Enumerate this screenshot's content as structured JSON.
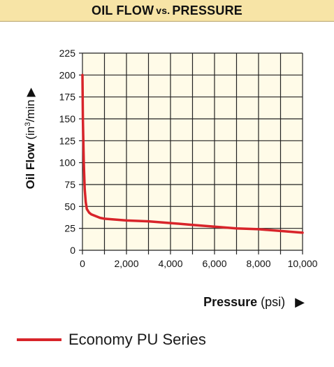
{
  "chart_data": {
    "type": "line",
    "title": {
      "part1": "OIL FLOW",
      "vs": "vs.",
      "part2": "PRESSURE"
    },
    "ylabel": {
      "main": "Oil Flow",
      "unit_open": " (in",
      "unit_sup": "3",
      "unit_close": "/min",
      "arrow": "▶"
    },
    "xlabel": {
      "main": "Pressure",
      "unit": " (psi)",
      "arrow": "▶"
    },
    "xlim": [
      0,
      10000
    ],
    "ylim": [
      0,
      225
    ],
    "x_ticks": [
      0,
      1000,
      2000,
      3000,
      4000,
      5000,
      6000,
      7000,
      8000,
      9000,
      10000
    ],
    "x_tick_labels": [
      "0",
      "",
      "2,000",
      "",
      "4,000",
      "",
      "6,000",
      "",
      "8,000",
      "",
      "10,000"
    ],
    "y_ticks": [
      0,
      25,
      50,
      75,
      100,
      125,
      150,
      175,
      200,
      225
    ],
    "y_tick_labels": [
      "0",
      "25",
      "50",
      "75",
      "100",
      "125",
      "150",
      "175",
      "200",
      "225"
    ],
    "grid": true,
    "legend_position": "bottom-left",
    "series": [
      {
        "name": "Economy PU Series",
        "color": "#d8242a",
        "x": [
          0,
          20,
          60,
          100,
          150,
          200,
          300,
          400,
          600,
          800,
          1000,
          2000,
          3000,
          4000,
          5000,
          6000,
          7000,
          8000,
          9000,
          10000
        ],
        "y": [
          200,
          150,
          100,
          70,
          55,
          47,
          43,
          41,
          39,
          37,
          36,
          34,
          33,
          31,
          29,
          27,
          25,
          24,
          22,
          20
        ]
      }
    ]
  }
}
